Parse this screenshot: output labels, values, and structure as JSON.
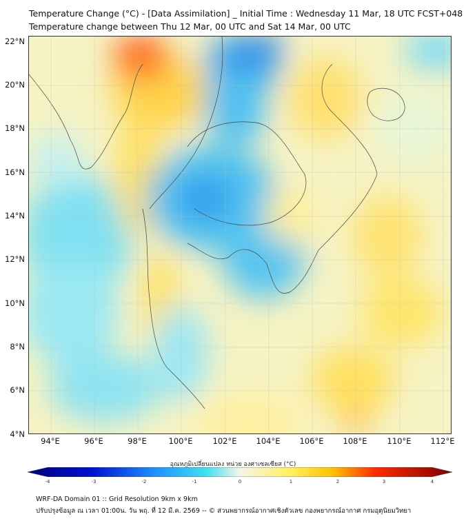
{
  "header": {
    "title_line1": "Temperature Change (°C) - [Data Assimilation] _ Initial Time : Wednesday 11 Mar, 18 UTC FCST+048",
    "title_line2": "Temperature change between Thu 12 Mar, 00 UTC and Sat 14 Mar, 00 UTC"
  },
  "map": {
    "lat_labels": [
      "22°N",
      "20°N",
      "18°N",
      "16°N",
      "14°N",
      "12°N",
      "10°N",
      "8°N",
      "6°N",
      "4°N"
    ],
    "lon_labels": [
      "94°E",
      "96°E",
      "98°E",
      "100°E",
      "102°E",
      "104°E",
      "106°E",
      "108°E",
      "110°E",
      "112°E"
    ],
    "colors": {
      "cold_max": "#00007f",
      "cold": "#1e90ff",
      "cool": "#40e0f0",
      "neutral": "#f5f5e8",
      "warm": "#ffe84a",
      "hot": "#ff2a00",
      "hot_max": "#7f0000"
    }
  },
  "colorbar": {
    "title": "อุณหภูมิเปลี่ยนแปลง หน่วย องศาเซลเซียส (°C)",
    "ticks": [
      "-4",
      "-3",
      "-2",
      "-1",
      "0",
      "1",
      "2",
      "3",
      "4"
    ],
    "range": [
      -4,
      4
    ]
  },
  "footer": {
    "line1": "WRF-DA Domain 01 :: Grid Resolution 9km x 9km",
    "line2": "ปรับปรุงข้อมูล ณ เวลา 01:00น. วัน พฤ. ที่ 12 มี.ค. 2569 -- © ส่วนพยากรณ์อากาศเชิงตัวเลข กองพยากรณ์อากาศ กรมอุตุนิยมวิทยา"
  }
}
